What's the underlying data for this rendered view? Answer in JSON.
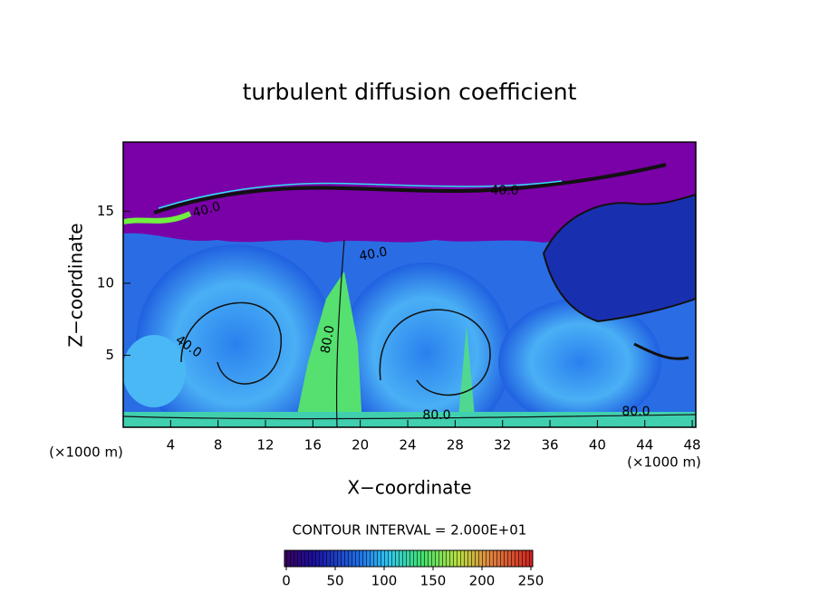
{
  "chart_data": {
    "type": "contour",
    "title": "turbulent diffusion coefficient",
    "x_label": "X−coordinate",
    "y_label": "Z−coordinate",
    "x_unit": "(×1000 m)",
    "y_unit": "(×1000 m)",
    "xlim": [
      0,
      48.3
    ],
    "ylim": [
      0,
      19.8
    ],
    "xticks": [
      4,
      8,
      12,
      16,
      20,
      24,
      28,
      32,
      36,
      40,
      44,
      48
    ],
    "yticks": [
      5,
      10,
      15
    ],
    "contour_labels": [
      "40.0",
      "40.0",
      "40.0",
      "40.0",
      "80.0",
      "80.0",
      "80.0"
    ],
    "contour_interval": "CONTOUR INTERVAL = 2.000E+01",
    "colorbar_lim": [
      0,
      250
    ],
    "colorbar_ticks": [
      0,
      50,
      100,
      150,
      200,
      250
    ]
  }
}
